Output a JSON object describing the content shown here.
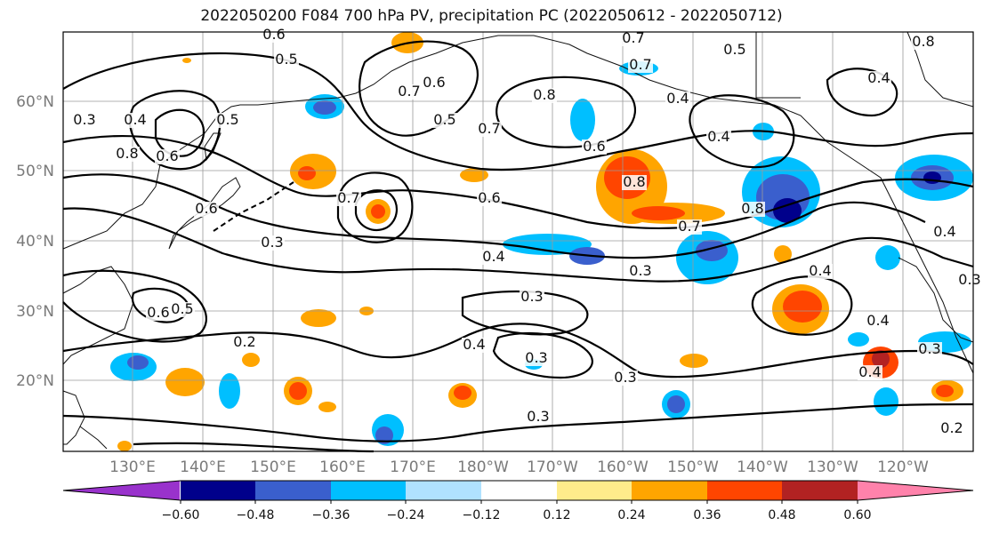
{
  "title": "2022050200 F084 700 hPa PV, precipitation PC (2022050612 - 2022050712)",
  "map": {
    "lat_ticks": [
      "60°N",
      "50°N",
      "40°N",
      "30°N",
      "20°N"
    ],
    "lon_ticks": [
      "130°E",
      "140°E",
      "150°E",
      "160°E",
      "170°E",
      "180°W",
      "170°W",
      "160°W",
      "150°W",
      "140°W",
      "130°W",
      "120°W"
    ]
  },
  "contour_labels": [
    "0.6",
    "0.5",
    "0.7",
    "0.6",
    "0.5",
    "0.7",
    "0.8",
    "0.7",
    "0.5",
    "0.7",
    "0.8",
    "0.4",
    "0.3",
    "0.4",
    "0.8",
    "0.6",
    "0.5",
    "0.4",
    "0.6",
    "0.6",
    "0.8",
    "0.4",
    "0.7",
    "0.6",
    "0.7",
    "0.8",
    "0.3",
    "0.4",
    "0.3",
    "0.4",
    "0.6",
    "0.5",
    "0.2",
    "0.3",
    "0.4",
    "0.3",
    "0.3",
    "0.4",
    "0.3",
    "0.4",
    "0.3",
    "0.2",
    "0.4",
    "0.2",
    "0.4",
    "0.3"
  ],
  "colorbar": {
    "ticks": [
      "−0.60",
      "−0.48",
      "−0.36",
      "−0.24",
      "−0.12",
      "0.12",
      "0.24",
      "0.36",
      "0.48",
      "0.60"
    ],
    "colors": [
      "#9932cc",
      "#00008b",
      "#3a5fcd",
      "#00bfff",
      "#b0e2ff",
      "#ffffff",
      "#ffec8b",
      "#ffa500",
      "#ff4500",
      "#b22222",
      "#ff82ab"
    ]
  }
}
